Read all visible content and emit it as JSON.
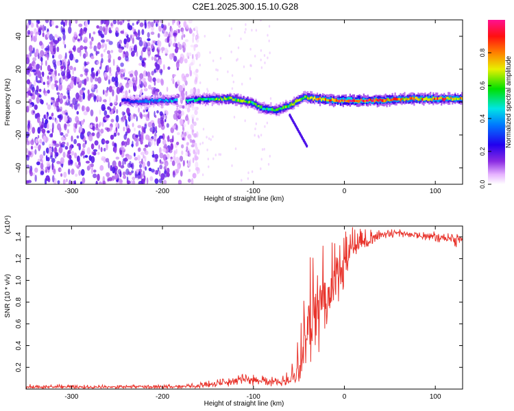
{
  "title": "C2E1.2025.300.15.10.G28",
  "colors": {
    "snr_line": "#e8322a",
    "background": "#ffffff",
    "axis": "#000000"
  },
  "chart_data": [
    {
      "type": "heatmap",
      "name": "spectrogram",
      "xlabel": "Height of straight line (km)",
      "ylabel": "Frequency (Hz)",
      "xlim": [
        -350,
        130
      ],
      "ylim": [
        -50,
        50
      ],
      "x_ticks": [
        -300,
        -200,
        -100,
        0,
        100
      ],
      "y_ticks": [
        -40,
        -20,
        0,
        20,
        40
      ],
      "colorbar": {
        "label": "Normalized spectral amplitude",
        "range": [
          0,
          1
        ],
        "ticks": [
          "0.0",
          "0.2",
          "0.4",
          "0.6",
          "0.8"
        ]
      },
      "noise_region_x": [
        -350,
        -160
      ],
      "signal_track": [
        {
          "x": -245,
          "freq": 1,
          "amp": 0.3
        },
        {
          "x": -225,
          "freq": 0,
          "amp": 0.35
        },
        {
          "x": -205,
          "freq": 1,
          "amp": 0.4
        },
        {
          "x": -172,
          "freq": 1,
          "amp": 0.5
        },
        {
          "x": -150,
          "freq": 2,
          "amp": 0.6
        },
        {
          "x": -125,
          "freq": 2,
          "amp": 0.7
        },
        {
          "x": -105,
          "freq": 0,
          "amp": 0.65
        },
        {
          "x": -90,
          "freq": -4,
          "amp": 0.6
        },
        {
          "x": -75,
          "freq": -5,
          "amp": 0.6
        },
        {
          "x": -60,
          "freq": -2,
          "amp": 0.65
        },
        {
          "x": -45,
          "freq": 3,
          "amp": 0.7
        },
        {
          "x": -30,
          "freq": 2,
          "amp": 0.8
        },
        {
          "x": -10,
          "freq": 1,
          "amp": 0.9
        },
        {
          "x": 10,
          "freq": 1,
          "amp": 1.0
        },
        {
          "x": 40,
          "freq": 1,
          "amp": 0.9
        },
        {
          "x": 70,
          "freq": 2,
          "amp": 0.8
        },
        {
          "x": 100,
          "freq": 2,
          "amp": 0.9
        },
        {
          "x": 130,
          "freq": 2,
          "amp": 0.85
        }
      ]
    },
    {
      "type": "line",
      "name": "snr",
      "xlabel": "Height of straight line (km)",
      "ylabel": "SNR (10 * v/v)",
      "y_multiplier": "(x10⁴)",
      "xlim": [
        -350,
        130
      ],
      "ylim": [
        0,
        1.5
      ],
      "x_ticks": [
        -300,
        -200,
        -100,
        0,
        100
      ],
      "y_ticks": [
        0.2,
        0.4,
        0.6,
        0.8,
        1.0,
        1.2,
        1.4
      ],
      "series": [
        {
          "name": "SNR",
          "color": "#e8322a",
          "x": [
            -350,
            -300,
            -250,
            -200,
            -170,
            -150,
            -130,
            -110,
            -90,
            -70,
            -60,
            -50,
            -45,
            -40,
            -35,
            -30,
            -25,
            -20,
            -15,
            -10,
            -5,
            0,
            5,
            10,
            20,
            30,
            40,
            50,
            60,
            70,
            80,
            90,
            100,
            110,
            120,
            130
          ],
          "y": [
            0.02,
            0.02,
            0.02,
            0.02,
            0.025,
            0.04,
            0.06,
            0.09,
            0.08,
            0.06,
            0.08,
            0.15,
            0.35,
            0.55,
            0.65,
            0.7,
            0.8,
            0.85,
            0.9,
            0.98,
            1.05,
            1.15,
            1.25,
            1.3,
            1.35,
            1.38,
            1.42,
            1.43,
            1.44,
            1.43,
            1.42,
            1.41,
            1.4,
            1.39,
            1.38,
            1.38
          ],
          "y_low": [
            0.005,
            0.005,
            0.005,
            0.005,
            0.005,
            0.01,
            0.02,
            0.03,
            0.02,
            0.02,
            0.03,
            0.05,
            0.1,
            0.15,
            0.2,
            0.3,
            0.4,
            0.5,
            0.6,
            0.7,
            0.8,
            0.95,
            1.1,
            1.2,
            1.28,
            1.32,
            1.38,
            1.39,
            1.4,
            1.39,
            1.38,
            1.36,
            1.35,
            1.34,
            1.3,
            1.32
          ],
          "y_high": [
            0.05,
            0.04,
            0.04,
            0.04,
            0.05,
            0.08,
            0.1,
            0.14,
            0.13,
            0.1,
            0.2,
            0.5,
            1.0,
            1.2,
            1.27,
            1.3,
            1.32,
            1.35,
            1.38,
            1.45,
            1.48,
            1.5,
            1.5,
            1.5,
            1.48,
            1.48,
            1.48,
            1.48,
            1.47,
            1.47,
            1.46,
            1.46,
            1.45,
            1.44,
            1.43,
            1.42
          ]
        }
      ]
    }
  ]
}
